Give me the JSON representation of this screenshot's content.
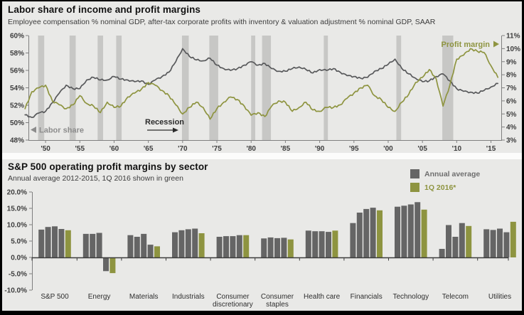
{
  "page": {
    "background": "#e9e9e7",
    "frame_color": "#000000",
    "separator_color": "#fcfcfb"
  },
  "chart_data": [
    {
      "type": "line",
      "title": "Labor share of income and profit margins",
      "subtitle": "Employee compensation % nominal GDP, after-tax corporate profits with inventory & valuation adjustment % nominal GDP, SAAR",
      "x_domain": [
        1947.5,
        2016.5
      ],
      "x_ticks": [
        {
          "year": 1950,
          "label": "'50"
        },
        {
          "year": 1955,
          "label": "'55"
        },
        {
          "year": 1960,
          "label": "'60"
        },
        {
          "year": 1965,
          "label": "'65"
        },
        {
          "year": 1970,
          "label": "'70"
        },
        {
          "year": 1975,
          "label": "'75"
        },
        {
          "year": 1980,
          "label": "'80"
        },
        {
          "year": 1985,
          "label": "'85"
        },
        {
          "year": 1990,
          "label": "'90"
        },
        {
          "year": 1995,
          "label": "'95"
        },
        {
          "year": 2000,
          "label": "'00"
        },
        {
          "year": 2005,
          "label": "'05"
        },
        {
          "year": 2010,
          "label": "'10"
        },
        {
          "year": 2015,
          "label": "'15"
        }
      ],
      "left_axis": {
        "range": [
          48,
          60
        ],
        "ticks": [
          {
            "v": 48,
            "label": "48%"
          },
          {
            "v": 50,
            "label": "50%"
          },
          {
            "v": 52,
            "label": "52%"
          },
          {
            "v": 54,
            "label": "54%"
          },
          {
            "v": 56,
            "label": "56%"
          },
          {
            "v": 58,
            "label": "58%"
          },
          {
            "v": 60,
            "label": "60%"
          }
        ]
      },
      "right_axis": {
        "range": [
          3,
          11
        ],
        "ticks": [
          {
            "v": 3,
            "label": "3%"
          },
          {
            "v": 4,
            "label": "4%"
          },
          {
            "v": 5,
            "label": "5%"
          },
          {
            "v": 6,
            "label": "6%"
          },
          {
            "v": 7,
            "label": "7%"
          },
          {
            "v": 8,
            "label": "8%"
          },
          {
            "v": 9,
            "label": "9%"
          },
          {
            "v": 10,
            "label": "10%"
          },
          {
            "v": 11,
            "label": "11%"
          }
        ]
      },
      "annotations": {
        "labor_share": {
          "text": "Labor share",
          "arrow": "left",
          "color": "#8c8c8c"
        },
        "recession": {
          "text": "Recession",
          "arrow": "right",
          "color": "#2b2b2b"
        },
        "profit_margin": {
          "text": "Profit margin",
          "arrow": "right",
          "color": "#8e9440"
        }
      },
      "recession_band_color": "#c7c7c5",
      "recessions": [
        [
          1948.9,
          1949.8
        ],
        [
          1953.5,
          1954.4
        ],
        [
          1957.6,
          1958.4
        ],
        [
          1960.3,
          1961.1
        ],
        [
          1969.9,
          1970.9
        ],
        [
          1973.9,
          1975.2
        ],
        [
          1980.0,
          1980.6
        ],
        [
          1981.6,
          1982.9
        ],
        [
          1990.6,
          1991.2
        ],
        [
          2001.2,
          2001.9
        ],
        [
          2007.9,
          2009.5
        ]
      ],
      "years": [
        1947,
        1948,
        1949,
        1950,
        1951,
        1952,
        1953,
        1954,
        1955,
        1956,
        1957,
        1958,
        1959,
        1960,
        1961,
        1962,
        1963,
        1964,
        1965,
        1966,
        1967,
        1968,
        1969,
        1970,
        1971,
        1972,
        1973,
        1974,
        1975,
        1976,
        1977,
        1978,
        1979,
        1980,
        1981,
        1982,
        1983,
        1984,
        1985,
        1986,
        1987,
        1988,
        1989,
        1990,
        1991,
        1992,
        1993,
        1994,
        1995,
        1996,
        1997,
        1998,
        1999,
        2000,
        2001,
        2002,
        2003,
        2004,
        2005,
        2006,
        2007,
        2008,
        2009,
        2010,
        2011,
        2012,
        2013,
        2014,
        2015,
        2016
      ],
      "series": [
        {
          "name": "Labor share",
          "axis": "left",
          "color": "#58595b",
          "values": [
            50.9,
            50.6,
            51.1,
            51.3,
            52.3,
            53.4,
            54.3,
            53.9,
            53.9,
            54.9,
            55.2,
            54.9,
            54.9,
            55.3,
            55.0,
            54.9,
            54.7,
            54.8,
            54.4,
            54.9,
            55.3,
            55.8,
            57.0,
            58.5,
            57.6,
            57.2,
            57.1,
            57.4,
            56.6,
            56.2,
            56.0,
            56.2,
            56.6,
            57.0,
            56.6,
            56.8,
            56.2,
            55.9,
            55.9,
            56.2,
            56.4,
            56.1,
            55.7,
            56.1,
            56.0,
            56.2,
            55.8,
            55.4,
            55.3,
            55.1,
            55.2,
            55.9,
            56.2,
            56.7,
            57.3,
            56.2,
            55.6,
            55.1,
            54.7,
            54.8,
            55.3,
            55.6,
            54.8,
            53.9,
            53.6,
            53.5,
            53.4,
            53.7,
            54.1,
            54.5
          ]
        },
        {
          "name": "Profit margin",
          "axis": "right",
          "color": "#8e9440",
          "values": [
            5.4,
            6.7,
            7.0,
            7.2,
            6.0,
            5.7,
            5.4,
            5.7,
            6.4,
            5.8,
            5.6,
            5.1,
            5.9,
            5.5,
            5.6,
            6.3,
            6.6,
            6.9,
            7.4,
            7.2,
            6.8,
            6.4,
            5.7,
            5.0,
            5.5,
            5.9,
            5.5,
            4.6,
            5.4,
            5.9,
            6.3,
            6.1,
            5.6,
            4.9,
            5.1,
            4.8,
            5.6,
            6.0,
            5.9,
            5.2,
            5.5,
            5.9,
            5.3,
            5.2,
            5.5,
            5.5,
            5.7,
            6.2,
            6.6,
            7.0,
            7.2,
            6.4,
            6.1,
            5.5,
            5.2,
            5.9,
            6.5,
            7.4,
            7.8,
            8.4,
            7.7,
            5.6,
            7.2,
            9.2,
            9.5,
            10.0,
            9.8,
            9.7,
            8.7,
            7.8
          ]
        }
      ]
    },
    {
      "type": "bar",
      "title": "S&P 500 operating profit margins by sector",
      "subtitle": "Annual average 2012-2015, 1Q 2016 shown in green",
      "legend": [
        {
          "label": "Annual average",
          "color": "#656565"
        },
        {
          "label": "1Q 2016*",
          "color": "#8e9440"
        }
      ],
      "ylim": [
        -10,
        20
      ],
      "y_ticks": [
        {
          "v": 20,
          "label": "20.0%"
        },
        {
          "v": 15,
          "label": "15.0%"
        },
        {
          "v": 10,
          "label": "10.0%"
        },
        {
          "v": 5,
          "label": "5.0%"
        },
        {
          "v": 0,
          "label": "0.0%"
        },
        {
          "v": -5,
          "label": "-5.0%"
        },
        {
          "v": -10,
          "label": "-10.0%"
        }
      ],
      "bar_colors": {
        "annual": "#656565",
        "q1_2016": "#8e9440"
      },
      "groups": [
        {
          "label": "S&P 500",
          "label_lines": [
            "S&P 500"
          ],
          "annual": [
            8.5,
            9.3,
            9.5,
            8.7
          ],
          "q1_2016": 8.3
        },
        {
          "label": "Energy",
          "label_lines": [
            "Energy"
          ],
          "annual": [
            7.2,
            7.2,
            7.5,
            -4.2
          ],
          "q1_2016": -4.8
        },
        {
          "label": "Materials",
          "label_lines": [
            "Materials"
          ],
          "annual": [
            6.8,
            6.3,
            7.2,
            3.9
          ],
          "q1_2016": 3.4
        },
        {
          "label": "Industrials",
          "label_lines": [
            "Industrials"
          ],
          "annual": [
            7.7,
            8.3,
            8.6,
            8.8
          ],
          "q1_2016": 7.4
        },
        {
          "label": "Consumer discretionary",
          "label_lines": [
            "Consumer",
            "discretionary"
          ],
          "annual": [
            6.3,
            6.5,
            6.5,
            6.8
          ],
          "q1_2016": 6.8
        },
        {
          "label": "Consumer staples",
          "label_lines": [
            "Consumer",
            "staples"
          ],
          "annual": [
            5.8,
            6.1,
            5.9,
            6.0
          ],
          "q1_2016": 5.5
        },
        {
          "label": "Health care",
          "label_lines": [
            "Health care"
          ],
          "annual": [
            8.2,
            8.0,
            8.0,
            7.8
          ],
          "q1_2016": 8.2
        },
        {
          "label": "Financials",
          "label_lines": [
            "Financials"
          ],
          "annual": [
            10.5,
            13.7,
            14.8,
            15.2
          ],
          "q1_2016": 14.4
        },
        {
          "label": "Technology",
          "label_lines": [
            "Technology"
          ],
          "annual": [
            15.5,
            15.8,
            16.2,
            16.9
          ],
          "q1_2016": 14.6
        },
        {
          "label": "Telecom",
          "label_lines": [
            "Telecom"
          ],
          "annual": [
            2.6,
            9.9,
            6.3,
            10.5
          ],
          "q1_2016": 9.6
        },
        {
          "label": "Utilities",
          "label_lines": [
            "Utilities"
          ],
          "annual": [
            8.6,
            8.4,
            8.8,
            7.7
          ],
          "q1_2016": 10.9
        }
      ]
    }
  ]
}
